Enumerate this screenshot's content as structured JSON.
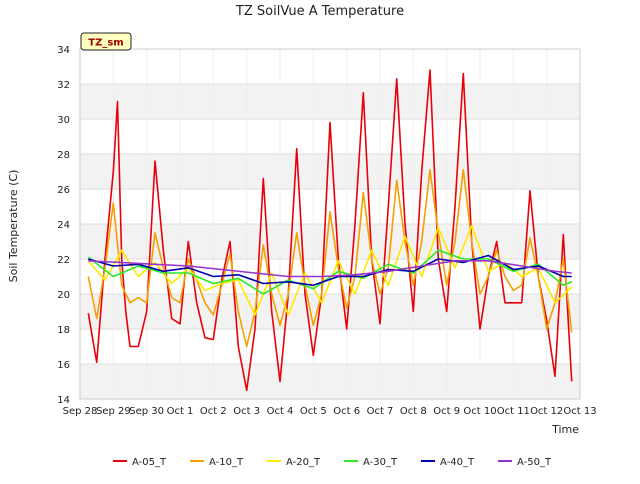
{
  "chart_data": {
    "type": "line",
    "title": "TZ SoilVue A Temperature",
    "xlabel": "Time",
    "ylabel": "Soil Temperature (C)",
    "badge": "TZ_sm",
    "ylim": [
      14,
      34
    ],
    "yticks": [
      14,
      16,
      18,
      20,
      22,
      24,
      26,
      28,
      30,
      32,
      34
    ],
    "xlim": [
      "2023-09-28",
      "2023-10-13"
    ],
    "xticks": [
      "Sep 28",
      "Sep 29",
      "Sep 30",
      "Oct 1",
      "Oct 2",
      "Oct 3",
      "Oct 4",
      "Oct 5",
      "Oct 6",
      "Oct 7",
      "Oct 8",
      "Oct 9",
      "Oct 10",
      "Oct 11",
      "Oct 12",
      "Oct 13"
    ],
    "grid": true,
    "legend_position": "bottom",
    "series": [
      {
        "name": "A-05_T",
        "color": "#e8000b",
        "x": [
          "2023-09-28 06:00",
          "2023-09-28 12:00",
          "2023-09-28 18:00",
          "2023-09-29 00:00",
          "2023-09-29 03:00",
          "2023-09-29 06:00",
          "2023-09-29 09:00",
          "2023-09-29 12:00",
          "2023-09-29 18:00",
          "2023-09-30 00:00",
          "2023-09-30 06:00",
          "2023-09-30 12:00",
          "2023-09-30 18:00",
          "2023-10-01 00:00",
          "2023-10-01 06:00",
          "2023-10-01 12:00",
          "2023-10-01 18:00",
          "2023-10-02 00:00",
          "2023-10-02 06:00",
          "2023-10-02 12:00",
          "2023-10-02 18:00",
          "2023-10-03 00:00",
          "2023-10-03 06:00",
          "2023-10-03 12:00",
          "2023-10-03 18:00",
          "2023-10-04 00:00",
          "2023-10-04 06:00",
          "2023-10-04 12:00",
          "2023-10-04 18:00",
          "2023-10-05 00:00",
          "2023-10-05 06:00",
          "2023-10-05 12:00",
          "2023-10-05 18:00",
          "2023-10-06 00:00",
          "2023-10-06 06:00",
          "2023-10-06 12:00",
          "2023-10-06 18:00",
          "2023-10-07 00:00",
          "2023-10-07 06:00",
          "2023-10-07 12:00",
          "2023-10-07 18:00",
          "2023-10-08 00:00",
          "2023-10-08 06:00",
          "2023-10-08 12:00",
          "2023-10-08 18:00",
          "2023-10-09 00:00",
          "2023-10-09 06:00",
          "2023-10-09 12:00",
          "2023-10-09 18:00",
          "2023-10-10 00:00",
          "2023-10-10 06:00",
          "2023-10-10 12:00",
          "2023-10-10 18:00",
          "2023-10-11 00:00",
          "2023-10-11 06:00",
          "2023-10-11 12:00",
          "2023-10-11 18:00",
          "2023-10-12 00:00",
          "2023-10-12 06:00",
          "2023-10-12 12:00",
          "2023-10-12 18:00"
        ],
        "y": [
          18.9,
          16.1,
          22.0,
          27.0,
          31.0,
          22.0,
          19.0,
          17.0,
          17.0,
          19.0,
          27.6,
          22.5,
          18.6,
          18.3,
          23.0,
          19.5,
          17.5,
          17.4,
          20.8,
          23.0,
          17.0,
          14.5,
          18.0,
          26.6,
          19.0,
          15.0,
          20.0,
          28.3,
          20.0,
          16.5,
          20.0,
          29.8,
          22.0,
          18.0,
          24.0,
          31.5,
          22.0,
          18.3,
          25.0,
          32.3,
          24.0,
          19.0,
          27.0,
          32.8,
          22.0,
          19.0,
          25.0,
          32.6,
          23.0,
          18.0,
          21.0,
          23.0,
          19.5,
          19.5,
          19.5,
          25.9,
          21.0,
          18.5,
          15.3,
          23.4,
          15.0
        ]
      },
      {
        "name": "A-10_T",
        "color": "#f5a000",
        "x": [
          "2023-09-28 06:00",
          "2023-09-28 12:00",
          "2023-09-28 18:00",
          "2023-09-29 00:00",
          "2023-09-29 06:00",
          "2023-09-29 12:00",
          "2023-09-29 18:00",
          "2023-09-30 00:00",
          "2023-09-30 06:00",
          "2023-09-30 12:00",
          "2023-09-30 18:00",
          "2023-10-01 00:00",
          "2023-10-01 06:00",
          "2023-10-01 12:00",
          "2023-10-01 18:00",
          "2023-10-02 00:00",
          "2023-10-02 06:00",
          "2023-10-02 12:00",
          "2023-10-02 18:00",
          "2023-10-03 00:00",
          "2023-10-03 06:00",
          "2023-10-03 12:00",
          "2023-10-03 18:00",
          "2023-10-04 00:00",
          "2023-10-04 06:00",
          "2023-10-04 12:00",
          "2023-10-04 18:00",
          "2023-10-05 00:00",
          "2023-10-05 06:00",
          "2023-10-05 12:00",
          "2023-10-05 18:00",
          "2023-10-06 00:00",
          "2023-10-06 06:00",
          "2023-10-06 12:00",
          "2023-10-06 18:00",
          "2023-10-07 00:00",
          "2023-10-07 06:00",
          "2023-10-07 12:00",
          "2023-10-07 18:00",
          "2023-10-08 00:00",
          "2023-10-08 06:00",
          "2023-10-08 12:00",
          "2023-10-08 18:00",
          "2023-10-09 00:00",
          "2023-10-09 06:00",
          "2023-10-09 12:00",
          "2023-10-09 18:00",
          "2023-10-10 00:00",
          "2023-10-10 06:00",
          "2023-10-10 12:00",
          "2023-10-10 18:00",
          "2023-10-11 00:00",
          "2023-10-11 06:00",
          "2023-10-11 12:00",
          "2023-10-11 18:00",
          "2023-10-12 00:00",
          "2023-10-12 06:00",
          "2023-10-12 12:00",
          "2023-10-12 18:00"
        ],
        "y": [
          21.0,
          18.6,
          21.5,
          25.2,
          20.5,
          19.5,
          19.8,
          19.5,
          23.5,
          21.5,
          19.8,
          19.5,
          22.0,
          20.8,
          19.5,
          18.8,
          20.5,
          22.3,
          19.0,
          17.0,
          19.0,
          22.8,
          20.0,
          18.2,
          20.0,
          23.5,
          20.5,
          18.2,
          20.0,
          24.7,
          21.5,
          19.2,
          21.0,
          25.8,
          22.0,
          20.0,
          21.5,
          26.5,
          23.0,
          20.5,
          23.0,
          27.1,
          23.5,
          20.5,
          23.0,
          27.1,
          23.0,
          20.0,
          21.0,
          22.5,
          21.0,
          20.2,
          20.5,
          23.2,
          21.0,
          18.0,
          19.5,
          22.0,
          17.8
        ]
      },
      {
        "name": "A-20_T",
        "color": "#ffe800",
        "x": [
          "2023-09-28 06:00",
          "2023-09-28 18:00",
          "2023-09-29 06:00",
          "2023-09-29 18:00",
          "2023-09-30 06:00",
          "2023-09-30 18:00",
          "2023-10-01 06:00",
          "2023-10-01 18:00",
          "2023-10-02 06:00",
          "2023-10-02 18:00",
          "2023-10-03 06:00",
          "2023-10-03 18:00",
          "2023-10-04 06:00",
          "2023-10-04 18:00",
          "2023-10-05 06:00",
          "2023-10-05 18:00",
          "2023-10-06 06:00",
          "2023-10-06 18:00",
          "2023-10-07 06:00",
          "2023-10-07 18:00",
          "2023-10-08 06:00",
          "2023-10-08 18:00",
          "2023-10-09 06:00",
          "2023-10-09 18:00",
          "2023-10-10 06:00",
          "2023-10-10 18:00",
          "2023-10-11 06:00",
          "2023-10-11 18:00",
          "2023-10-12 06:00",
          "2023-10-12 18:00"
        ],
        "y": [
          21.9,
          20.8,
          22.5,
          21.0,
          21.8,
          20.6,
          21.5,
          20.2,
          20.6,
          20.8,
          18.8,
          21.2,
          18.8,
          21.2,
          19.5,
          21.9,
          20.0,
          22.5,
          20.5,
          23.3,
          21.0,
          23.8,
          21.5,
          23.9,
          21.3,
          21.8,
          21.0,
          21.5,
          19.5,
          20.4
        ]
      },
      {
        "name": "A-30_T",
        "color": "#2be82b",
        "x": [
          "2023-09-28 06:00",
          "2023-09-29 00:00",
          "2023-09-29 18:00",
          "2023-09-30 12:00",
          "2023-10-01 06:00",
          "2023-10-02 00:00",
          "2023-10-02 18:00",
          "2023-10-03 12:00",
          "2023-10-04 06:00",
          "2023-10-05 00:00",
          "2023-10-05 18:00",
          "2023-10-06 12:00",
          "2023-10-07 06:00",
          "2023-10-08 00:00",
          "2023-10-08 18:00",
          "2023-10-09 12:00",
          "2023-10-10 06:00",
          "2023-10-11 00:00",
          "2023-10-11 18:00",
          "2023-10-12 12:00",
          "2023-10-12 18:00"
        ],
        "y": [
          22.1,
          21.0,
          21.6,
          21.2,
          21.2,
          20.6,
          20.9,
          20.0,
          20.8,
          20.3,
          21.3,
          20.9,
          21.7,
          21.2,
          22.5,
          22.0,
          22.0,
          21.3,
          21.7,
          20.5,
          20.7
        ]
      },
      {
        "name": "A-40_T",
        "color": "#0000b0",
        "x": [
          "2023-09-28 06:00",
          "2023-09-29 00:00",
          "2023-09-29 18:00",
          "2023-09-30 12:00",
          "2023-10-01 06:00",
          "2023-10-02 00:00",
          "2023-10-02 18:00",
          "2023-10-03 12:00",
          "2023-10-04 06:00",
          "2023-10-05 00:00",
          "2023-10-05 18:00",
          "2023-10-06 12:00",
          "2023-10-07 06:00",
          "2023-10-08 00:00",
          "2023-10-08 18:00",
          "2023-10-09 12:00",
          "2023-10-10 06:00",
          "2023-10-11 00:00",
          "2023-10-11 18:00",
          "2023-10-12 12:00",
          "2023-10-12 18:00"
        ],
        "y": [
          22.0,
          21.6,
          21.7,
          21.3,
          21.5,
          21.0,
          21.1,
          20.6,
          20.7,
          20.5,
          21.0,
          21.0,
          21.4,
          21.3,
          22.0,
          21.8,
          22.2,
          21.4,
          21.6,
          21.0,
          21.0
        ]
      },
      {
        "name": "A-50_T",
        "color": "#9932cc",
        "x": [
          "2023-09-28 06:00",
          "2023-09-29 06:00",
          "2023-09-30 06:00",
          "2023-10-01 06:00",
          "2023-10-02 06:00",
          "2023-10-03 06:00",
          "2023-10-04 06:00",
          "2023-10-05 06:00",
          "2023-10-06 06:00",
          "2023-10-07 06:00",
          "2023-10-08 06:00",
          "2023-10-09 06:00",
          "2023-10-10 06:00",
          "2023-10-11 06:00",
          "2023-10-12 06:00",
          "2023-10-12 18:00"
        ],
        "y": [
          21.9,
          21.8,
          21.7,
          21.6,
          21.4,
          21.2,
          21.0,
          21.0,
          21.1,
          21.3,
          21.6,
          21.9,
          21.9,
          21.6,
          21.3,
          21.2
        ]
      }
    ]
  }
}
